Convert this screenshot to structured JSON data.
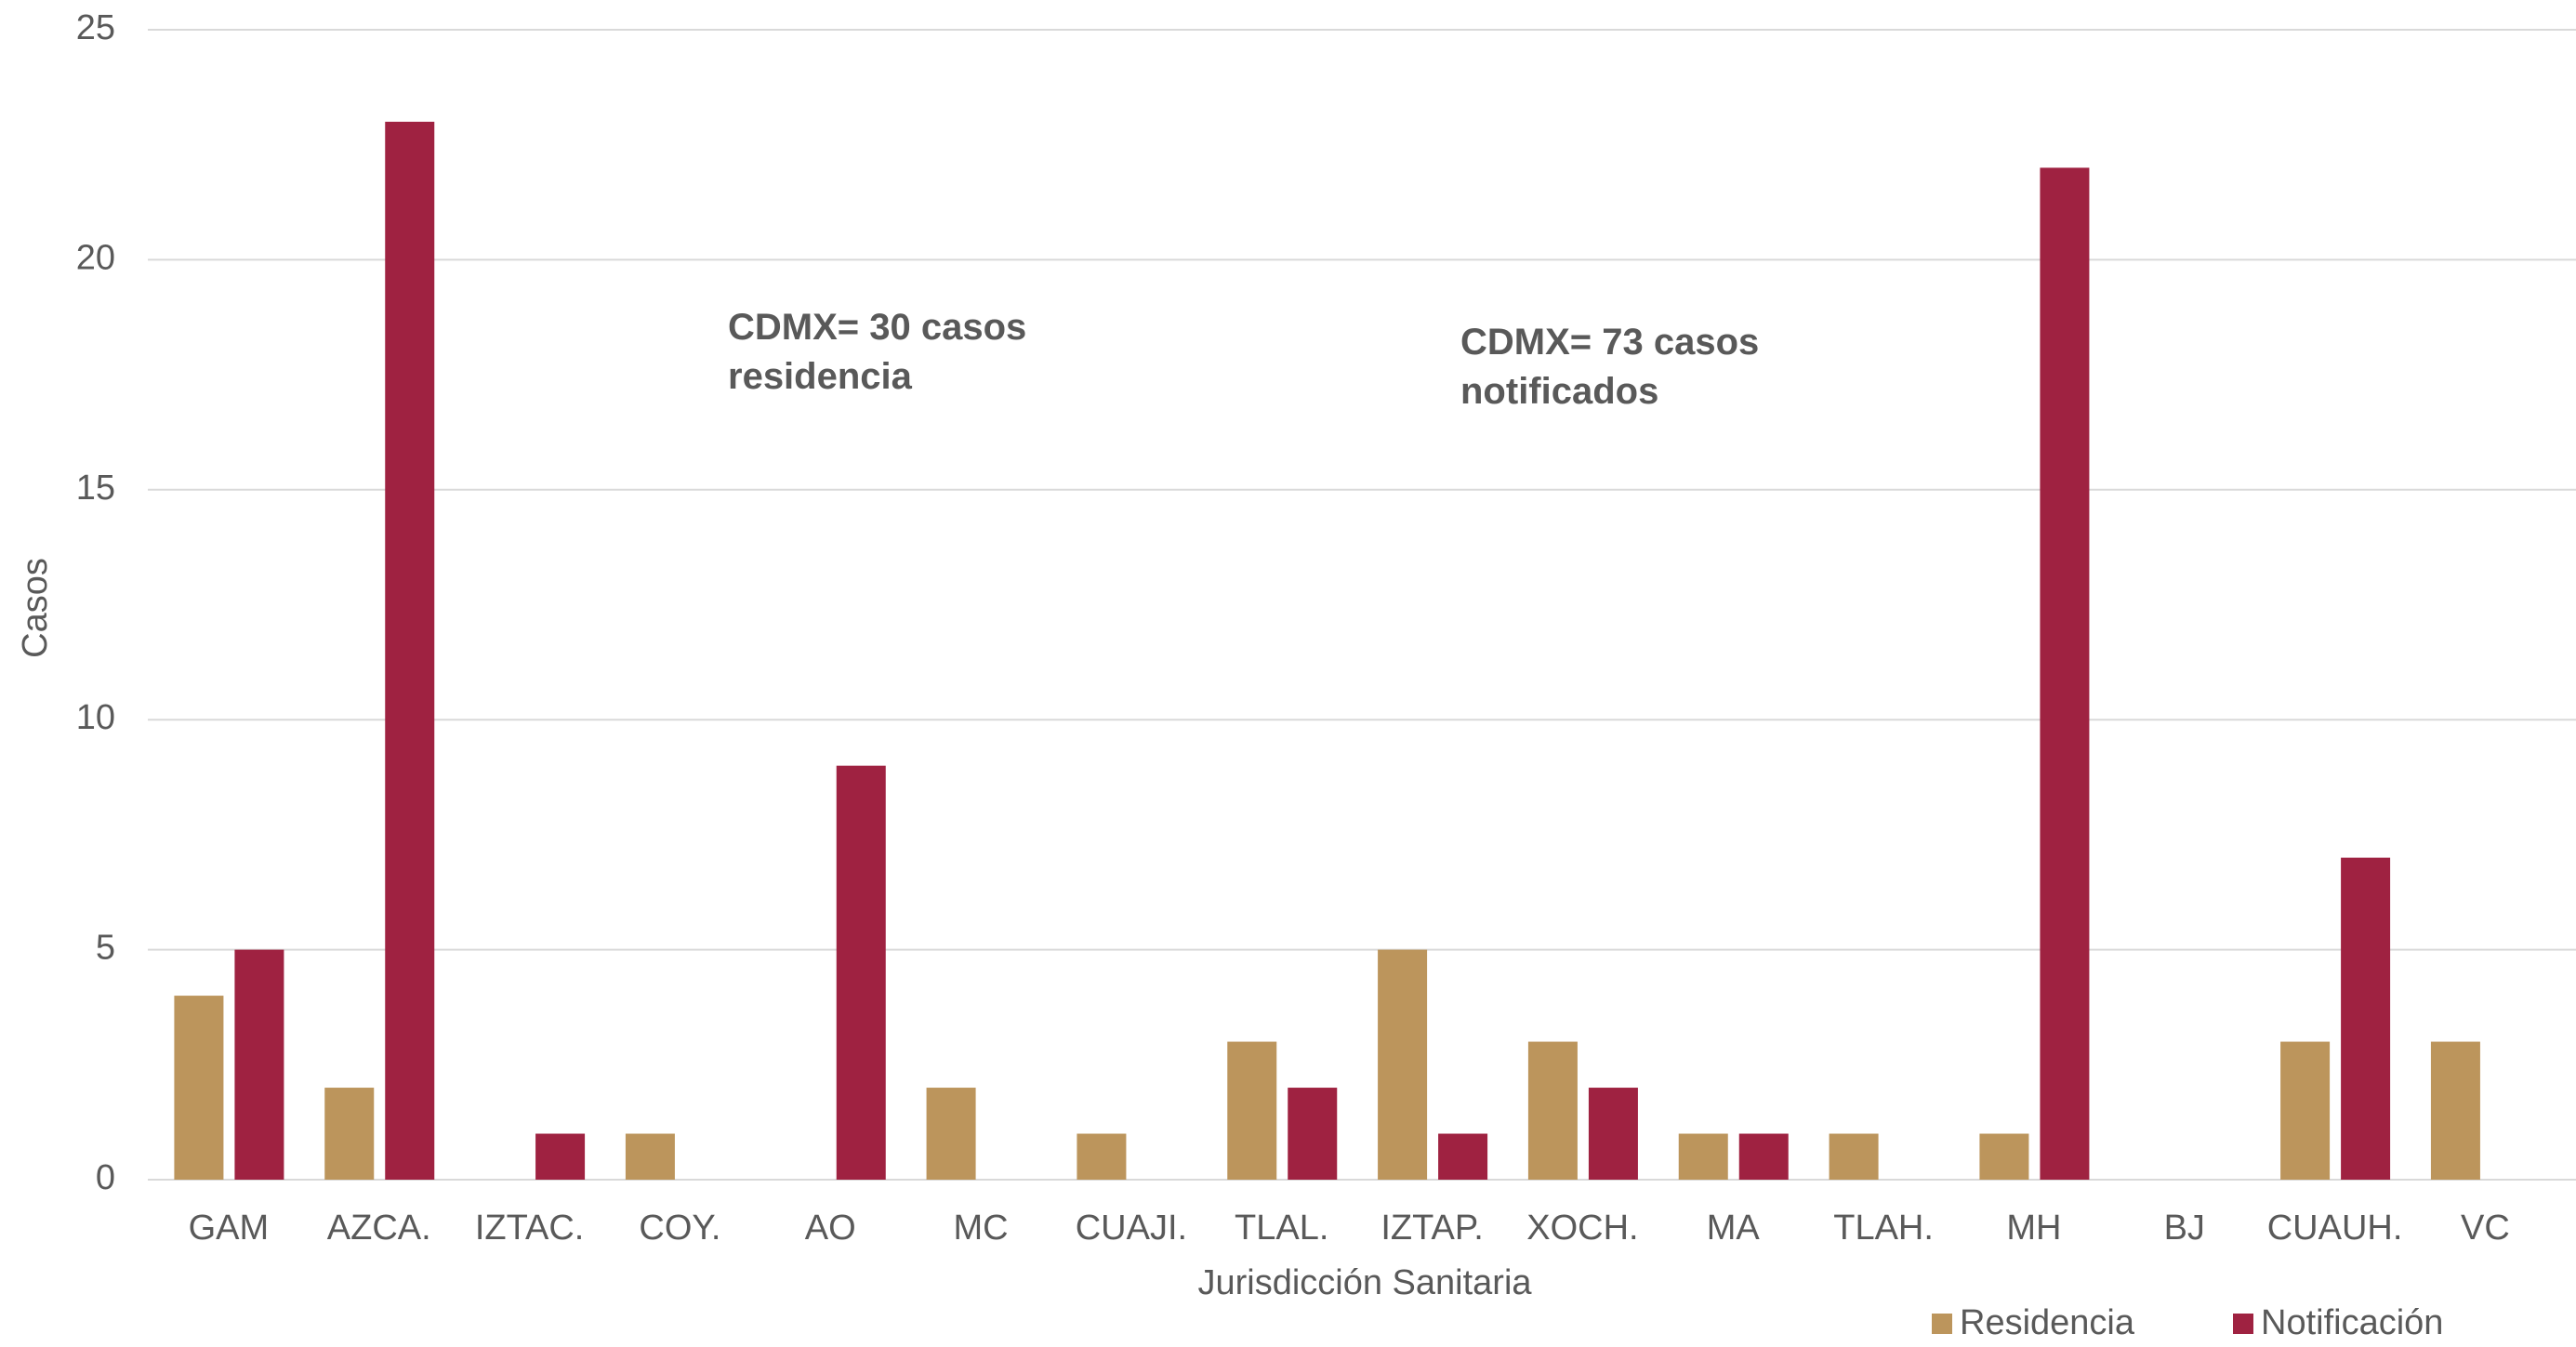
{
  "chart_data": {
    "type": "bar",
    "x_label": "Jurisdicción Sanitaria",
    "y_label": "Casos",
    "categories": [
      "GAM",
      "AZCA.",
      "IZTAC.",
      "COY.",
      "AO",
      "MC",
      "CUAJI.",
      "TLAL.",
      "IZTAP.",
      "XOCH.",
      "MA",
      "TLAH.",
      "MH",
      "BJ",
      "CUAUH.",
      "VC"
    ],
    "series": [
      {
        "name": "Residencia",
        "color": "#bc955c",
        "values": [
          4,
          2,
          0,
          1,
          0,
          2,
          1,
          3,
          5,
          3,
          1,
          1,
          1,
          0,
          3,
          3
        ]
      },
      {
        "name": "Notificación",
        "color": "#9f2241",
        "values": [
          5,
          23,
          1,
          0,
          9,
          0,
          0,
          2,
          1,
          2,
          1,
          0,
          22,
          0,
          7,
          0
        ]
      }
    ],
    "annotations": [
      {
        "lines": [
          "CDMX= 30 casos",
          "residencia"
        ],
        "color": "#bc955c"
      },
      {
        "lines": [
          "CDMX= 73 casos",
          "notificados"
        ],
        "color": "#9f2241"
      }
    ],
    "ylim": [
      0,
      25
    ],
    "yticks": [
      0,
      5,
      10,
      15,
      20,
      25
    ],
    "grid": true,
    "legend": "bottom-right"
  }
}
